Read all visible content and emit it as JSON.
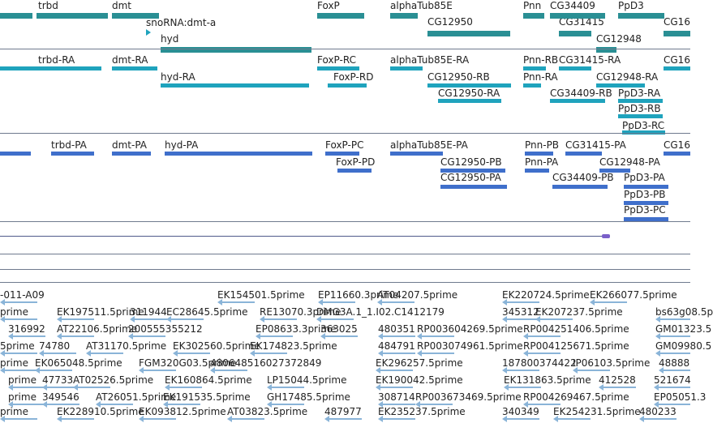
{
  "colors": {
    "gene": "#2a8f94",
    "mrna": "#1fa3bd",
    "cds": "#3f6fcb",
    "protein": "#7a5fc9",
    "est": "#8ab4d8",
    "separator": "#6f7a8e"
  },
  "tracks": {
    "genes": {
      "labels": [
        "trbd",
        "dmt",
        "snoRNA:dmt-a",
        "hyd",
        "FoxP",
        "alphaTub85E",
        "CG12950",
        "Pnn",
        "CG34409",
        "CG31415",
        "PpD3",
        "CG12948",
        "CG16"
      ]
    },
    "transcripts": {
      "labels": [
        "trbd-RA",
        "dmt-RA",
        "hyd-RA",
        "FoxP-RC",
        "FoxP-RD",
        "alphaTub85E-RA",
        "CG12950-RB",
        "CG12950-RA",
        "Pnn-RB",
        "Pnn-RA",
        "CG31415-RA",
        "CG34409-RB",
        "CG12948-RA",
        "PpD3-RA",
        "PpD3-RB",
        "PpD3-RC",
        "CG16"
      ]
    },
    "proteins": {
      "labels": [
        "trbd-PA",
        "dmt-PA",
        "hyd-PA",
        "FoxP-PC",
        "FoxP-PD",
        "alphaTub85E-PA",
        "CG12950-PB",
        "CG12950-PA",
        "Pnn-PB",
        "Pnn-PA",
        "CG31415-PA",
        "CG34409-PB",
        "CG12948-PA",
        "PpD3-PA",
        "PpD3-PB",
        "PpD3-PC",
        "CG16"
      ]
    },
    "ests": {
      "rows": [
        [
          "-011-A09",
          "EK154501.5prime",
          "EP11660.3prime",
          "AT04207.5prime",
          "EK220724.5prime",
          "EK266077.5prime"
        ],
        [
          "prime",
          "EK197511.5prime",
          "311944",
          "EC28645.5prime",
          "RE13070.3prime",
          "DMG3A.1_1.I02.C1412179",
          "345312",
          "EK207237.5prime",
          "bs63g08.5p"
        ],
        [
          "316992",
          "AT22106.5prime",
          "200555355212",
          "EP08633.3prime",
          "363025",
          "480351",
          "RP003604269.5prime",
          "RP004251406.5prime",
          "GM01323.5"
        ],
        [
          "5prime",
          "74780",
          "AT31170.5prime",
          "EK302560.5prime",
          "EK174823.5prime",
          "484791",
          "RP003074961.5prime",
          "RP004125671.5prime",
          "GM09980.5"
        ],
        [
          "prime",
          "EK065048.5prime",
          "FGM320G03.5prime",
          "480648516027372849",
          "EK296257.5prime",
          "187800374422",
          "IP06103.5prime",
          "48888"
        ],
        [
          "prime",
          "47733",
          "AT02526.5prime",
          "EK160864.5prime",
          "LP15044.5prime",
          "EK190042.5prime",
          "EK131863.5prime",
          "412528",
          "521674"
        ],
        [
          "prime",
          "349546",
          "AT26051.5prime",
          "EK191535.5prime",
          "GH17485.5prime",
          "308714",
          "RP003673469.5prime",
          "RP004269467.5prime",
          "EP05051.3"
        ],
        [
          "prime",
          "EK228910.5prime",
          "EK093812.5prime",
          "AT03823.5prime",
          "487977",
          "EK235237.5prime",
          "340349",
          "EK254231.5prime",
          "480233"
        ]
      ]
    }
  }
}
